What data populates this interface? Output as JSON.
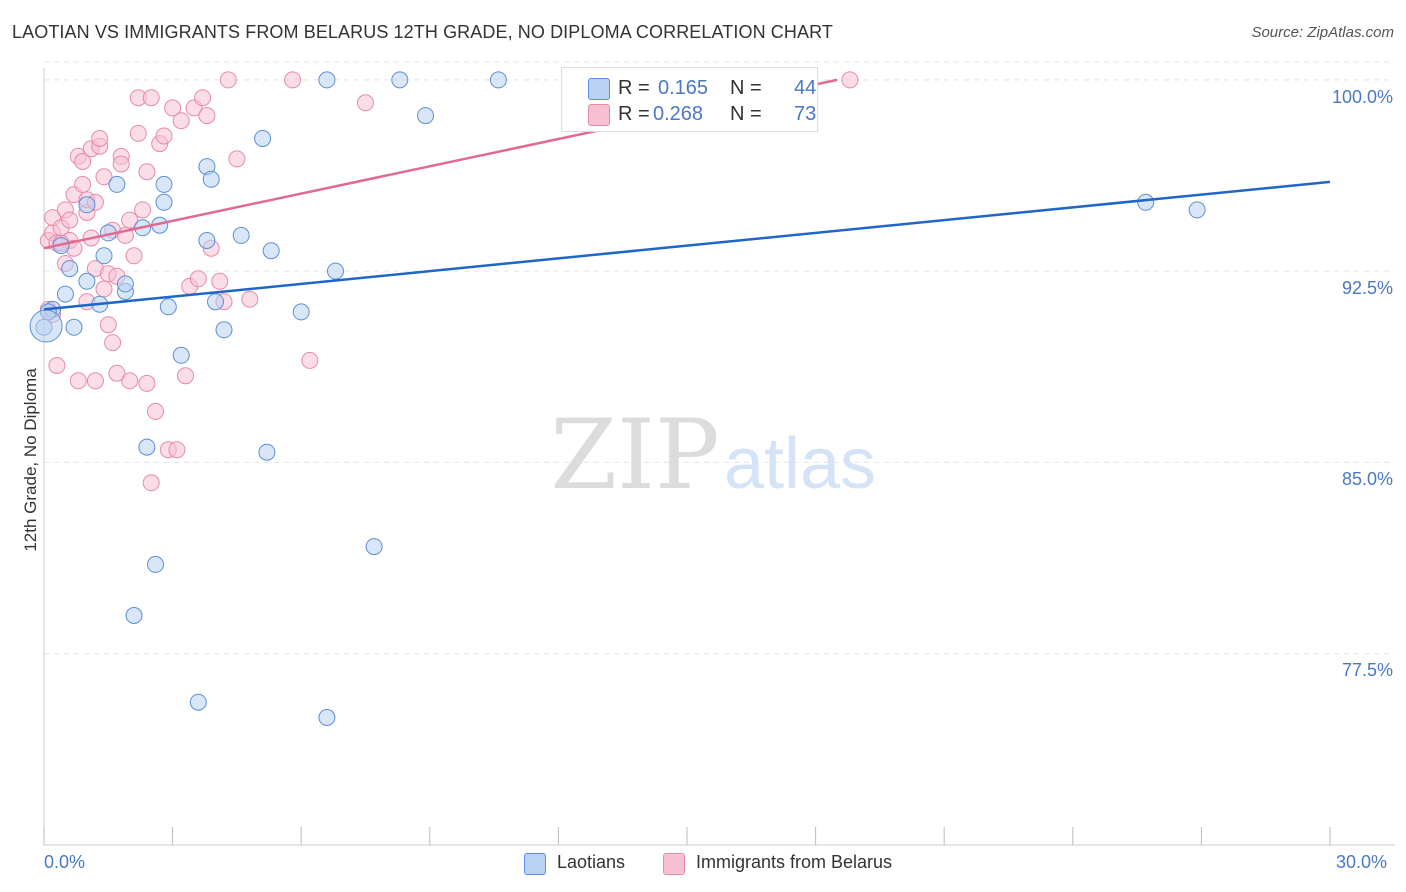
{
  "title": "LAOTIAN VS IMMIGRANTS FROM BELARUS 12TH GRADE, NO DIPLOMA CORRELATION CHART",
  "source": "Source: ZipAtlas.com",
  "watermark": {
    "zip": "ZIP",
    "atlas": "atlas"
  },
  "colors": {
    "blue_fill": "#b9d2f2",
    "blue_stroke": "#5b8fd6",
    "blue_line": "#1f66c9",
    "pink_fill": "#f8c1d3",
    "pink_stroke": "#e78aa9",
    "pink_line": "#e06a93",
    "tick_text": "#4a78c4",
    "grid": "#e3e3e3"
  },
  "legend": {
    "r_label": "R =",
    "n_label": "N =",
    "series": [
      {
        "name": "Laotians",
        "r": "0.165",
        "n": "44"
      },
      {
        "name": "Immigrants from Belarus",
        "r": "0.268",
        "n": "73"
      }
    ]
  },
  "chart_data": {
    "type": "scatter",
    "title": "LAOTIAN VS IMMIGRANTS FROM BELARUS 12TH GRADE, NO DIPLOMA CORRELATION CHART",
    "xlabel": "",
    "ylabel": "12th Grade, No Diploma",
    "xlim": [
      0,
      30
    ],
    "ylim": [
      70,
      100.7
    ],
    "x_tick_labels": [
      "0.0%",
      "30.0%"
    ],
    "y_ticks": [
      {
        "value": 100,
        "label": "100.0%"
      },
      {
        "value": 92.5,
        "label": "92.5%"
      },
      {
        "value": 85,
        "label": "85.0%"
      },
      {
        "value": 77.5,
        "label": "77.5%"
      }
    ],
    "grid": true,
    "legend_position": "top-center",
    "series": [
      {
        "name": "Laotians",
        "trend": {
          "x": [
            0,
            30
          ],
          "y": [
            91.0,
            96.0
          ]
        },
        "points": [
          [
            0.0,
            90.3
          ],
          [
            0.2,
            91.0
          ],
          [
            0.5,
            91.6
          ],
          [
            0.6,
            92.6
          ],
          [
            0.7,
            90.3
          ],
          [
            1.0,
            92.1
          ],
          [
            1.0,
            95.1
          ],
          [
            1.3,
            91.2
          ],
          [
            1.4,
            93.1
          ],
          [
            1.5,
            94.0
          ],
          [
            1.7,
            95.9
          ],
          [
            1.9,
            91.7
          ],
          [
            1.9,
            92.0
          ],
          [
            2.1,
            79.0
          ],
          [
            2.3,
            94.2
          ],
          [
            2.4,
            85.6
          ],
          [
            2.6,
            81.0
          ],
          [
            2.7,
            94.3
          ],
          [
            2.8,
            95.9
          ],
          [
            2.8,
            95.2
          ],
          [
            2.9,
            91.1
          ],
          [
            3.2,
            89.2
          ],
          [
            3.6,
            75.6
          ],
          [
            3.8,
            93.7
          ],
          [
            3.8,
            96.6
          ],
          [
            3.9,
            96.1
          ],
          [
            4.0,
            91.3
          ],
          [
            4.2,
            90.2
          ],
          [
            4.6,
            93.9
          ],
          [
            5.1,
            97.7
          ],
          [
            5.2,
            85.4
          ],
          [
            5.3,
            93.3
          ],
          [
            6.0,
            90.9
          ],
          [
            6.6,
            75.0
          ],
          [
            6.6,
            100.0
          ],
          [
            6.8,
            92.5
          ],
          [
            7.7,
            81.7
          ],
          [
            8.3,
            100.0
          ],
          [
            8.9,
            98.6
          ],
          [
            10.6,
            100.0
          ],
          [
            25.7,
            95.2
          ],
          [
            26.9,
            94.9
          ],
          [
            0.1,
            90.9
          ],
          [
            0.4,
            93.5
          ]
        ]
      },
      {
        "name": "Immigrants from Belarus",
        "trend": {
          "x": [
            0,
            18.5
          ],
          "y": [
            93.4,
            100.0
          ]
        },
        "points": [
          [
            0.1,
            93.7
          ],
          [
            0.2,
            94.0
          ],
          [
            0.2,
            94.6
          ],
          [
            0.3,
            93.6
          ],
          [
            0.3,
            88.8
          ],
          [
            0.4,
            94.2
          ],
          [
            0.5,
            94.9
          ],
          [
            0.5,
            92.8
          ],
          [
            0.6,
            93.7
          ],
          [
            0.7,
            95.5
          ],
          [
            0.7,
            93.4
          ],
          [
            0.8,
            88.2
          ],
          [
            0.8,
            97.0
          ],
          [
            0.9,
            96.8
          ],
          [
            1.0,
            94.8
          ],
          [
            1.0,
            95.3
          ],
          [
            1.0,
            91.3
          ],
          [
            1.1,
            97.3
          ],
          [
            1.2,
            92.6
          ],
          [
            1.2,
            95.2
          ],
          [
            1.2,
            88.2
          ],
          [
            1.3,
            97.4
          ],
          [
            1.3,
            97.7
          ],
          [
            1.4,
            96.2
          ],
          [
            1.5,
            90.4
          ],
          [
            1.5,
            92.4
          ],
          [
            1.6,
            89.7
          ],
          [
            1.6,
            94.1
          ],
          [
            1.7,
            92.3
          ],
          [
            1.8,
            97.0
          ],
          [
            1.8,
            96.7
          ],
          [
            1.9,
            93.9
          ],
          [
            2.0,
            88.2
          ],
          [
            2.1,
            93.1
          ],
          [
            2.2,
            97.9
          ],
          [
            2.2,
            99.3
          ],
          [
            2.3,
            94.9
          ],
          [
            2.4,
            96.4
          ],
          [
            2.4,
            88.1
          ],
          [
            2.5,
            99.3
          ],
          [
            2.6,
            87.0
          ],
          [
            2.7,
            97.5
          ],
          [
            2.8,
            97.8
          ],
          [
            2.9,
            85.5
          ],
          [
            3.0,
            98.9
          ],
          [
            3.2,
            98.4
          ],
          [
            3.3,
            88.4
          ],
          [
            3.4,
            91.9
          ],
          [
            3.5,
            98.9
          ],
          [
            3.7,
            99.3
          ],
          [
            3.8,
            98.6
          ],
          [
            3.9,
            93.4
          ],
          [
            4.1,
            92.1
          ],
          [
            4.2,
            91.3
          ],
          [
            4.3,
            100.0
          ],
          [
            4.5,
            96.9
          ],
          [
            5.8,
            100.0
          ],
          [
            6.2,
            89.0
          ],
          [
            7.5,
            99.1
          ],
          [
            18.8,
            100.0
          ],
          [
            0.1,
            91.0
          ],
          [
            0.4,
            93.6
          ],
          [
            0.6,
            94.5
          ],
          [
            1.7,
            88.5
          ],
          [
            2.5,
            84.2
          ],
          [
            3.1,
            85.5
          ],
          [
            0.9,
            95.9
          ],
          [
            1.4,
            91.8
          ],
          [
            2.0,
            94.5
          ],
          [
            3.6,
            92.2
          ],
          [
            4.8,
            91.4
          ],
          [
            1.1,
            93.8
          ],
          [
            0.2,
            90.8
          ]
        ]
      }
    ]
  }
}
